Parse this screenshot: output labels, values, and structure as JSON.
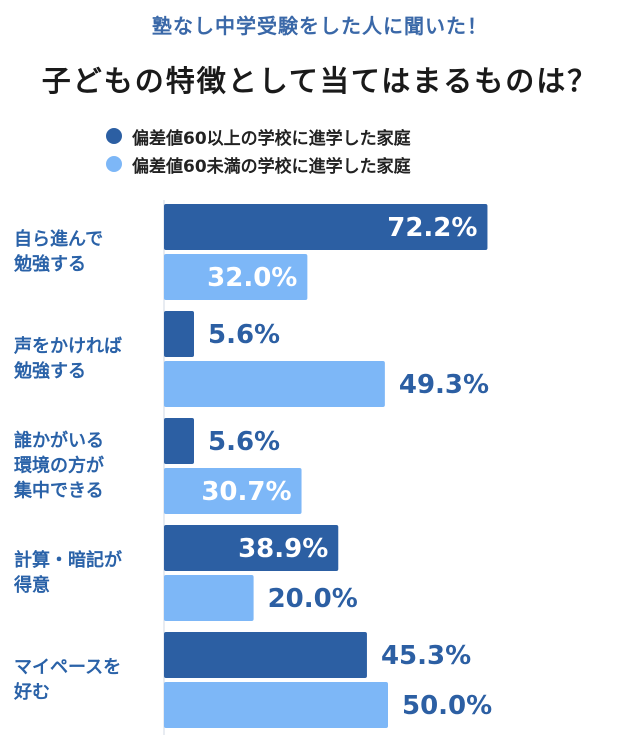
{
  "header": {
    "subtitle": "塾なし中学受験をした人に聞いた！",
    "title": "子どもの特徴として当てはまるものは？"
  },
  "colors": {
    "series1": "#2c5fa3",
    "series2": "#7db7f7",
    "series1_text_outside": "#2c5fa3",
    "series2_text_outside": "#2c5fa3",
    "text_inside": "#ffffff"
  },
  "chart_data": {
    "type": "bar",
    "orientation": "horizontal",
    "title": "子どもの特徴として当てはまるものは？",
    "subtitle": "塾なし中学受験をした人に聞いた！",
    "xlabel": "",
    "ylabel": "",
    "xlim": [
      0,
      100
    ],
    "unit": "%",
    "legend_position": "top",
    "categories": [
      [
        "自ら進んで",
        "勉強する"
      ],
      [
        "声をかければ",
        "勉強する"
      ],
      [
        "誰かがいる",
        "環境の方が",
        "集中できる"
      ],
      [
        "計算・暗記が",
        "得意"
      ],
      [
        "マイペースを",
        "好む"
      ]
    ],
    "series": [
      {
        "name": "偏差値60以上の学校に進学した家庭",
        "values": [
          72.2,
          5.6,
          5.6,
          38.9,
          45.3
        ]
      },
      {
        "name": "偏差値60未満の学校に進学した家庭",
        "values": [
          32.0,
          49.3,
          30.7,
          20.0,
          50.0
        ]
      }
    ]
  }
}
